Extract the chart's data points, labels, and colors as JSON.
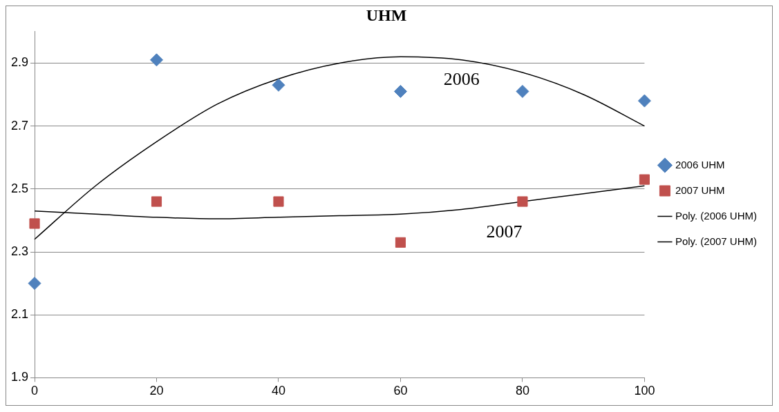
{
  "chart_data": {
    "type": "scatter",
    "title": "UHM",
    "xlim": [
      0,
      100
    ],
    "xticks": [
      0,
      20,
      40,
      60,
      80,
      100
    ],
    "ylim": [
      1.9,
      3.0
    ],
    "yticks": [
      1.9,
      2.1,
      2.3,
      2.5,
      2.7,
      2.9
    ],
    "grid": "y",
    "legend": "right",
    "series": [
      {
        "name": "2006 UHM",
        "color": "#4f81bd",
        "marker": "diamond",
        "x": [
          0,
          20,
          40,
          60,
          80,
          100
        ],
        "values": [
          2.2,
          2.91,
          2.83,
          2.81,
          2.81,
          2.78
        ]
      },
      {
        "name": "2007 UHM",
        "color": "#c0504d",
        "marker": "square",
        "x": [
          0,
          20,
          40,
          60,
          80,
          100
        ],
        "values": [
          2.39,
          2.46,
          2.46,
          2.33,
          2.46,
          2.53
        ]
      },
      {
        "name": "Poly. (2006 UHM)",
        "type": "line",
        "color": "#000000",
        "marker": "none",
        "line_style": "solid",
        "x": [
          0,
          10,
          20,
          30,
          40,
          50,
          60,
          70,
          80,
          90,
          100
        ],
        "values": [
          2.34,
          2.51,
          2.65,
          2.77,
          2.85,
          2.9,
          2.92,
          2.91,
          2.87,
          2.8,
          2.7
        ]
      },
      {
        "name": "Poly. (2007 UHM)",
        "type": "line",
        "color": "#000000",
        "marker": "none",
        "line_style": "solid",
        "x": [
          0,
          10,
          20,
          30,
          40,
          50,
          60,
          70,
          80,
          90,
          100
        ],
        "values": [
          2.43,
          2.42,
          2.41,
          2.405,
          2.41,
          2.415,
          2.42,
          2.435,
          2.46,
          2.485,
          2.51
        ]
      }
    ],
    "annotations": [
      "2006",
      "2007"
    ]
  }
}
